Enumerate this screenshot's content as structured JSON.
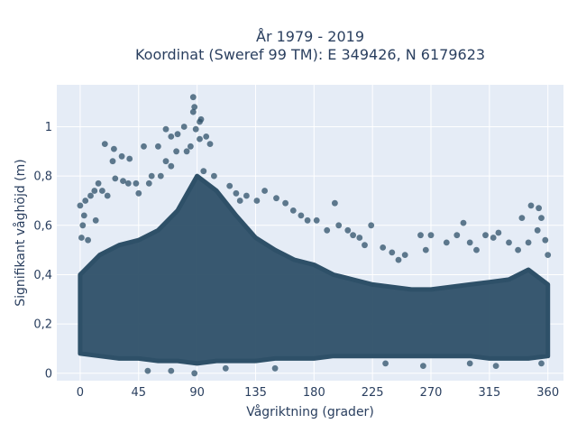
{
  "chart_data": {
    "type": "scatter",
    "title_line1": "År 1979 - 2019",
    "title_line2": "Koordinat (Sweref 99 TM): E 349426, N 6179623",
    "xlabel": "Vågriktning (grader)",
    "ylabel": "Signifikant våghöjd (m)",
    "xlim": [
      -18,
      372
    ],
    "ylim": [
      -0.03,
      1.17
    ],
    "xticks": [
      0,
      45,
      90,
      135,
      180,
      225,
      270,
      315,
      360
    ],
    "xtick_labels": [
      "0",
      "45",
      "90",
      "135",
      "180",
      "225",
      "270",
      "315",
      "360"
    ],
    "yticks": [
      0,
      0.2,
      0.4,
      0.6,
      0.8,
      1.0
    ],
    "ytick_labels": [
      "0",
      "0,2",
      "0,4",
      "0,6",
      "0,8",
      "1"
    ],
    "grid": true,
    "marker_color": "#2e5068",
    "plot_bg": "#e5ecf6",
    "envelope": {
      "direction": [
        0,
        15,
        30,
        45,
        60,
        75,
        90,
        105,
        120,
        135,
        150,
        165,
        180,
        195,
        210,
        225,
        240,
        255,
        270,
        285,
        300,
        315,
        330,
        345,
        360
      ],
      "dense_upper": [
        0.4,
        0.48,
        0.52,
        0.54,
        0.58,
        0.66,
        0.8,
        0.74,
        0.64,
        0.55,
        0.5,
        0.46,
        0.44,
        0.4,
        0.38,
        0.36,
        0.35,
        0.34,
        0.34,
        0.35,
        0.36,
        0.37,
        0.38,
        0.42,
        0.36
      ],
      "dense_lower": [
        0.08,
        0.07,
        0.06,
        0.06,
        0.05,
        0.05,
        0.04,
        0.05,
        0.05,
        0.05,
        0.06,
        0.06,
        0.06,
        0.07,
        0.07,
        0.07,
        0.07,
        0.07,
        0.07,
        0.07,
        0.07,
        0.06,
        0.06,
        0.06,
        0.07
      ]
    },
    "points": [
      {
        "x": 87,
        "y": 1.12
      },
      {
        "x": 88,
        "y": 1.08
      },
      {
        "x": 87,
        "y": 1.06
      },
      {
        "x": 93,
        "y": 1.03
      },
      {
        "x": 92,
        "y": 1.02
      },
      {
        "x": 80,
        "y": 1.0
      },
      {
        "x": 89,
        "y": 0.99
      },
      {
        "x": 66,
        "y": 0.99
      },
      {
        "x": 75,
        "y": 0.97
      },
      {
        "x": 70,
        "y": 0.96
      },
      {
        "x": 97,
        "y": 0.96
      },
      {
        "x": 92,
        "y": 0.95
      },
      {
        "x": 100,
        "y": 0.93
      },
      {
        "x": 19,
        "y": 0.93
      },
      {
        "x": 49,
        "y": 0.92
      },
      {
        "x": 60,
        "y": 0.92
      },
      {
        "x": 85,
        "y": 0.92
      },
      {
        "x": 26,
        "y": 0.91
      },
      {
        "x": 74,
        "y": 0.9
      },
      {
        "x": 82,
        "y": 0.9
      },
      {
        "x": 32,
        "y": 0.88
      },
      {
        "x": 38,
        "y": 0.87
      },
      {
        "x": 25,
        "y": 0.86
      },
      {
        "x": 66,
        "y": 0.86
      },
      {
        "x": 70,
        "y": 0.84
      },
      {
        "x": 95,
        "y": 0.82
      },
      {
        "x": 103,
        "y": 0.8
      },
      {
        "x": 27,
        "y": 0.79
      },
      {
        "x": 55,
        "y": 0.8
      },
      {
        "x": 62,
        "y": 0.8
      },
      {
        "x": 33,
        "y": 0.78
      },
      {
        "x": 37,
        "y": 0.77
      },
      {
        "x": 43,
        "y": 0.77
      },
      {
        "x": 53,
        "y": 0.77
      },
      {
        "x": 14,
        "y": 0.77
      },
      {
        "x": 11,
        "y": 0.74
      },
      {
        "x": 17,
        "y": 0.74
      },
      {
        "x": 21,
        "y": 0.72
      },
      {
        "x": 45,
        "y": 0.73
      },
      {
        "x": 115,
        "y": 0.76
      },
      {
        "x": 120,
        "y": 0.73
      },
      {
        "x": 128,
        "y": 0.72
      },
      {
        "x": 142,
        "y": 0.74
      },
      {
        "x": 151,
        "y": 0.71
      },
      {
        "x": 158,
        "y": 0.69
      },
      {
        "x": 123,
        "y": 0.7
      },
      {
        "x": 136,
        "y": 0.7
      },
      {
        "x": 8,
        "y": 0.72
      },
      {
        "x": 4,
        "y": 0.7
      },
      {
        "x": 0,
        "y": 0.68
      },
      {
        "x": 3,
        "y": 0.64
      },
      {
        "x": 2,
        "y": 0.6
      },
      {
        "x": 1,
        "y": 0.55
      },
      {
        "x": 6,
        "y": 0.54
      },
      {
        "x": 12,
        "y": 0.62
      },
      {
        "x": 164,
        "y": 0.66
      },
      {
        "x": 170,
        "y": 0.64
      },
      {
        "x": 175,
        "y": 0.62
      },
      {
        "x": 182,
        "y": 0.62
      },
      {
        "x": 196,
        "y": 0.69
      },
      {
        "x": 190,
        "y": 0.58
      },
      {
        "x": 199,
        "y": 0.6
      },
      {
        "x": 206,
        "y": 0.58
      },
      {
        "x": 210,
        "y": 0.56
      },
      {
        "x": 215,
        "y": 0.55
      },
      {
        "x": 224,
        "y": 0.6
      },
      {
        "x": 219,
        "y": 0.52
      },
      {
        "x": 233,
        "y": 0.51
      },
      {
        "x": 240,
        "y": 0.49
      },
      {
        "x": 250,
        "y": 0.48
      },
      {
        "x": 245,
        "y": 0.46
      },
      {
        "x": 262,
        "y": 0.56
      },
      {
        "x": 270,
        "y": 0.56
      },
      {
        "x": 266,
        "y": 0.5
      },
      {
        "x": 282,
        "y": 0.53
      },
      {
        "x": 290,
        "y": 0.56
      },
      {
        "x": 295,
        "y": 0.61
      },
      {
        "x": 300,
        "y": 0.53
      },
      {
        "x": 305,
        "y": 0.5
      },
      {
        "x": 312,
        "y": 0.56
      },
      {
        "x": 318,
        "y": 0.55
      },
      {
        "x": 322,
        "y": 0.57
      },
      {
        "x": 330,
        "y": 0.53
      },
      {
        "x": 337,
        "y": 0.5
      },
      {
        "x": 340,
        "y": 0.63
      },
      {
        "x": 347,
        "y": 0.68
      },
      {
        "x": 353,
        "y": 0.67
      },
      {
        "x": 355,
        "y": 0.63
      },
      {
        "x": 352,
        "y": 0.58
      },
      {
        "x": 358,
        "y": 0.54
      },
      {
        "x": 345,
        "y": 0.53
      },
      {
        "x": 360,
        "y": 0.48
      },
      {
        "x": 235,
        "y": 0.04
      },
      {
        "x": 264,
        "y": 0.03
      },
      {
        "x": 70,
        "y": 0.01
      },
      {
        "x": 52,
        "y": 0.01
      },
      {
        "x": 88,
        "y": 0.0
      },
      {
        "x": 112,
        "y": 0.02
      },
      {
        "x": 150,
        "y": 0.02
      },
      {
        "x": 320,
        "y": 0.03
      },
      {
        "x": 300,
        "y": 0.04
      },
      {
        "x": 355,
        "y": 0.04
      }
    ]
  }
}
